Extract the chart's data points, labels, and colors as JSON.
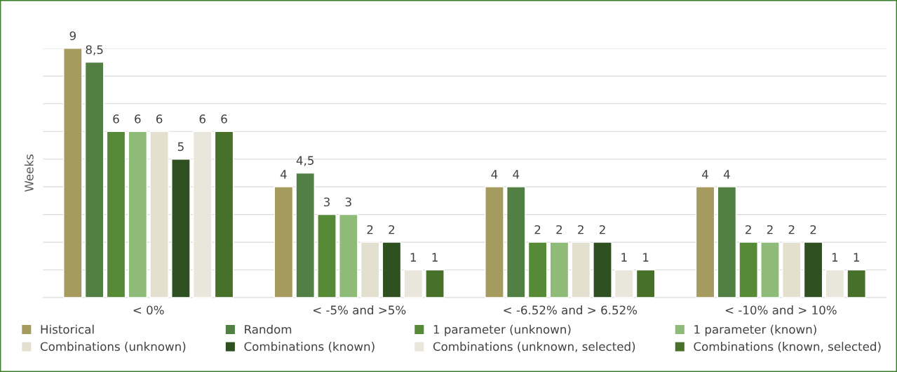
{
  "chart_data": {
    "type": "bar",
    "ylabel": "Weeks",
    "categories": [
      "< 0%",
      "< -5% and >5%",
      "< -6.52% and > 6.52%",
      "< -10% and > 10%"
    ],
    "series": [
      {
        "name": "Historical",
        "color": "#a59b5e",
        "values": [
          9,
          4,
          4,
          4
        ],
        "value_labels": [
          "9",
          "4",
          "4",
          "4"
        ]
      },
      {
        "name": "Random",
        "color": "#517f44",
        "values": [
          8.5,
          4.5,
          4,
          4
        ],
        "value_labels": [
          "8,5",
          "4,5",
          "4",
          "4"
        ]
      },
      {
        "name": "1 parameter (unknown)",
        "color": "#568a37",
        "values": [
          6,
          3,
          2,
          2
        ],
        "value_labels": [
          "6",
          "3",
          "2",
          "2"
        ]
      },
      {
        "name": "1 parameter (known)",
        "color": "#8fbb78",
        "values": [
          6,
          3,
          2,
          2
        ],
        "value_labels": [
          "6",
          "3",
          "2",
          "2"
        ]
      },
      {
        "name": "Combinations (unknown)",
        "color": "#e3e0d0",
        "values": [
          6,
          2,
          2,
          2
        ],
        "value_labels": [
          "6",
          "2",
          "2",
          "2"
        ]
      },
      {
        "name": "Combinations (known)",
        "color": "#2f5020",
        "values": [
          5,
          2,
          2,
          2
        ],
        "value_labels": [
          "5",
          "2",
          "2",
          "2"
        ]
      },
      {
        "name": "Combinations (unknown, selected)",
        "color": "#e9e6dc",
        "values": [
          6,
          1,
          1,
          1
        ],
        "value_labels": [
          "6",
          "1",
          "1",
          "1"
        ]
      },
      {
        "name": "Combinations (known, selected)",
        "color": "#47702b",
        "values": [
          6,
          1,
          1,
          1
        ],
        "value_labels": [
          "6",
          "1",
          "1",
          "1"
        ]
      }
    ],
    "ylim": [
      0,
      9
    ],
    "yticks": [
      {
        "value": 0,
        "label": null
      },
      {
        "value": 1,
        "label": null
      },
      {
        "value": 2,
        "label": null
      },
      {
        "value": 3,
        "label": null
      },
      {
        "value": 4,
        "label": null
      },
      {
        "value": 5,
        "label": null
      },
      {
        "value": 6,
        "label": null
      },
      {
        "value": 7,
        "label": null
      },
      {
        "value": 8,
        "label": null
      },
      {
        "value": 9,
        "label": null
      }
    ],
    "grid": "y",
    "legend": "bottom"
  }
}
